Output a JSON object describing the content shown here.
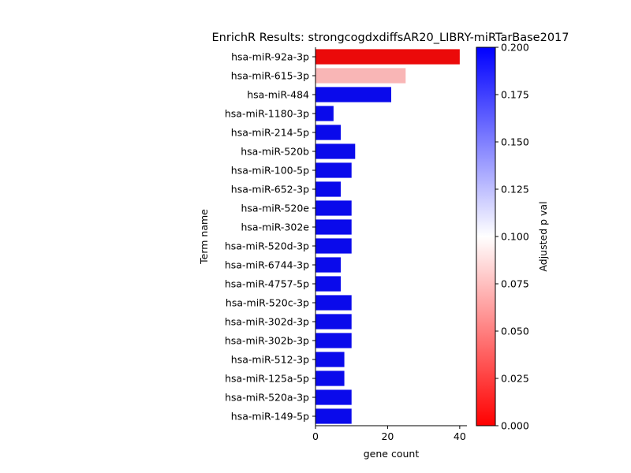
{
  "chart_data": {
    "type": "bar",
    "orientation": "horizontal",
    "title": "EnrichR Results: strongcogdxdiffsAR20_LIBRY-miRTarBase2017",
    "xlabel": "gene count",
    "ylabel": "Term name",
    "xlim": [
      0,
      42
    ],
    "xticks": [
      "0",
      "20",
      "40"
    ],
    "categories": [
      "hsa-miR-92a-3p",
      "hsa-miR-615-3p",
      "hsa-miR-484",
      "hsa-miR-1180-3p",
      "hsa-miR-214-5p",
      "hsa-miR-520b",
      "hsa-miR-100-5p",
      "hsa-miR-652-3p",
      "hsa-miR-520e",
      "hsa-miR-302e",
      "hsa-miR-520d-3p",
      "hsa-miR-6744-3p",
      "hsa-miR-4757-5p",
      "hsa-miR-520c-3p",
      "hsa-miR-302d-3p",
      "hsa-miR-302b-3p",
      "hsa-miR-512-3p",
      "hsa-miR-125a-5p",
      "hsa-miR-520a-3p",
      "hsa-miR-149-5p"
    ],
    "values": [
      40,
      25,
      21,
      5,
      7,
      11,
      10,
      7,
      10,
      10,
      10,
      7,
      7,
      10,
      10,
      10,
      8,
      8,
      10,
      10
    ],
    "adjusted_p": [
      0.0,
      0.07,
      0.2,
      0.2,
      0.2,
      0.2,
      0.2,
      0.2,
      0.2,
      0.2,
      0.2,
      0.2,
      0.2,
      0.2,
      0.2,
      0.2,
      0.2,
      0.2,
      0.2,
      0.2
    ],
    "colorbar": {
      "label": "Adjusted p val",
      "range": [
        0.0,
        0.2
      ],
      "ticks": [
        "0.000",
        "0.025",
        "0.050",
        "0.075",
        "0.100",
        "0.125",
        "0.150",
        "0.175",
        "0.200"
      ],
      "colors": {
        "low": "#ff0000",
        "mid": "#ffffff",
        "high": "#0000ff"
      }
    },
    "grid": false
  }
}
